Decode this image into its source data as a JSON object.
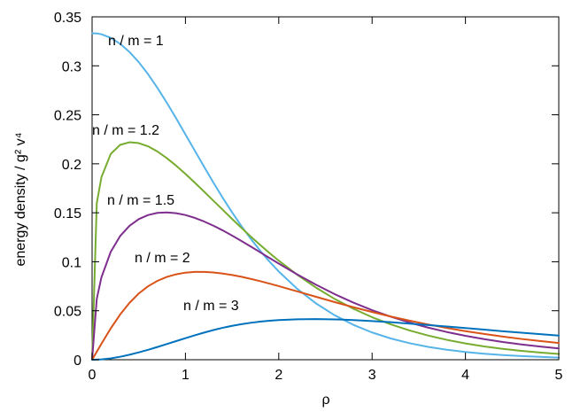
{
  "chart_data": {
    "type": "line",
    "xlabel": "ρ",
    "ylabel": "energy density / g² v⁴",
    "xlim": [
      0,
      5
    ],
    "ylim": [
      0,
      0.35
    ],
    "xticks": [
      0,
      1,
      2,
      3,
      4,
      5
    ],
    "yticks": [
      0,
      0.05,
      0.1,
      0.15,
      0.2,
      0.25,
      0.3,
      0.35
    ],
    "ytick_labels": [
      "0",
      "0.05",
      "0.1",
      "0.15",
      "0.2",
      "0.25",
      "0.3",
      "0.35"
    ],
    "grid": false,
    "legend": "none (labels placed on curves)",
    "x": [
      0,
      0.05,
      0.1,
      0.2,
      0.3,
      0.4,
      0.5,
      0.6,
      0.7,
      0.8,
      0.9,
      1.0,
      1.1,
      1.2,
      1.3,
      1.4,
      1.5,
      1.6,
      1.7,
      1.8,
      1.9,
      2.0,
      2.2,
      2.4,
      2.6,
      2.8,
      3.0,
      3.2,
      3.4,
      3.6,
      3.8,
      4.0,
      4.2,
      4.4,
      4.6,
      4.8,
      5.0
    ],
    "series": [
      {
        "name": "n / m = 1",
        "color": "#56b4e9",
        "values": [
          0.3333,
          0.3331,
          0.3322,
          0.3286,
          0.3225,
          0.3142,
          0.3037,
          0.2914,
          0.2775,
          0.2624,
          0.2465,
          0.23,
          0.2134,
          0.1969,
          0.1808,
          0.1652,
          0.1504,
          0.1364,
          0.1234,
          0.1113,
          0.1002,
          0.09,
          0.0722,
          0.0574,
          0.0453,
          0.0356,
          0.0278,
          0.0217,
          0.0169,
          0.0131,
          0.0102,
          0.0079,
          0.0061,
          0.0047,
          0.0037,
          0.0029,
          0.0022
        ]
      },
      {
        "name": "n / m = 1.2",
        "color": "#77ac30",
        "values": [
          0,
          0.1597,
          0.1863,
          0.2101,
          0.2193,
          0.222,
          0.2211,
          0.2178,
          0.2125,
          0.2058,
          0.1981,
          0.1897,
          0.1808,
          0.1716,
          0.1623,
          0.153,
          0.1437,
          0.1346,
          0.1257,
          0.1172,
          0.109,
          0.1011,
          0.0866,
          0.0735,
          0.062,
          0.052,
          0.0434,
          0.0361,
          0.0299,
          0.0247,
          0.0203,
          0.0166,
          0.0136,
          0.0111,
          0.009,
          0.0073,
          0.0059
        ]
      },
      {
        "name": "n / m = 1.5",
        "color": "#7e2f8e",
        "values": [
          0,
          0.0621,
          0.0841,
          0.1102,
          0.1262,
          0.1366,
          0.1435,
          0.1477,
          0.1499,
          0.1504,
          0.1496,
          0.1477,
          0.1448,
          0.1411,
          0.1368,
          0.132,
          0.1267,
          0.1212,
          0.1155,
          0.1097,
          0.1039,
          0.0981,
          0.0869,
          0.0765,
          0.0669,
          0.0583,
          0.0506,
          0.0439,
          0.038,
          0.0328,
          0.0283,
          0.0244,
          0.021,
          0.0181,
          0.0156,
          0.0134,
          0.0115
        ]
      },
      {
        "name": "n / m = 2",
        "color": "#d95319",
        "values": [
          0,
          0.0081,
          0.0163,
          0.032,
          0.0461,
          0.058,
          0.0676,
          0.075,
          0.0805,
          0.0845,
          0.0872,
          0.0889,
          0.0897,
          0.0897,
          0.0891,
          0.088,
          0.0865,
          0.0847,
          0.0825,
          0.0802,
          0.0777,
          0.0751,
          0.0697,
          0.0642,
          0.0588,
          0.0536,
          0.0487,
          0.0441,
          0.0399,
          0.036,
          0.0324,
          0.0292,
          0.0263,
          0.0236,
          0.0212,
          0.0191,
          0.0171
        ]
      },
      {
        "name": "n / m = 3",
        "color": "#0072bd",
        "values": [
          0,
          0.0001,
          0.0003,
          0.0014,
          0.003,
          0.0051,
          0.0075,
          0.0101,
          0.013,
          0.016,
          0.019,
          0.022,
          0.0249,
          0.0277,
          0.0303,
          0.0326,
          0.0346,
          0.0363,
          0.0377,
          0.0389,
          0.0398,
          0.0405,
          0.0413,
          0.0415,
          0.0412,
          0.0405,
          0.0395,
          0.0383,
          0.0369,
          0.0354,
          0.0339,
          0.0323,
          0.0307,
          0.0291,
          0.0276,
          0.0261,
          0.0246
        ]
      }
    ]
  }
}
